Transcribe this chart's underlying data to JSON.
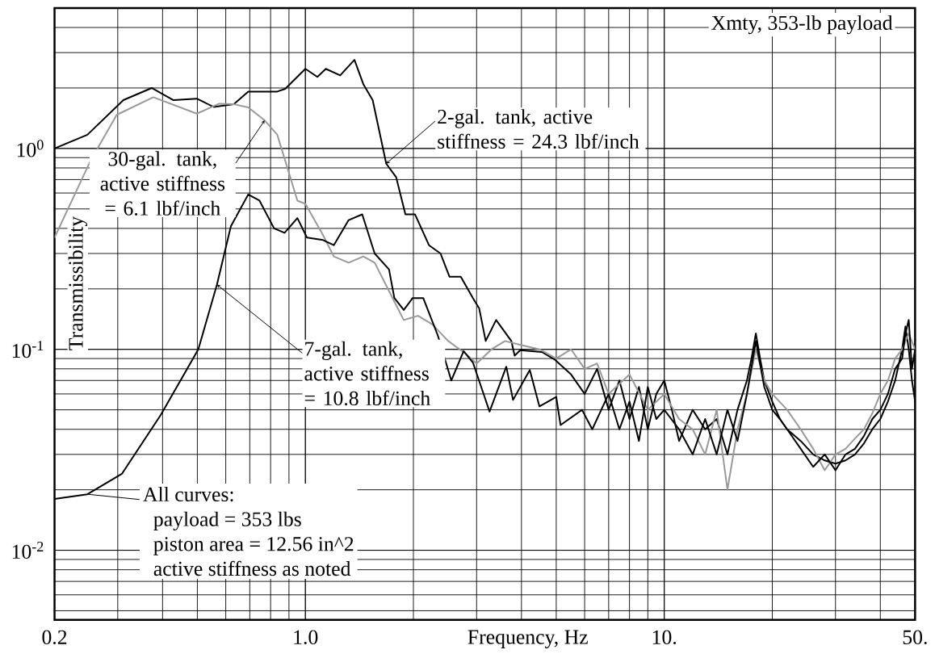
{
  "chart_data": {
    "type": "line",
    "xlabel": "Frequency, Hz",
    "ylabel": "Transmissibility",
    "log": "xy",
    "grid": true,
    "xlim": [
      0.2,
      50
    ],
    "ylim": [
      0.0045,
      5
    ],
    "xticks": [
      {
        "value": 0.2,
        "label": "0.2"
      },
      {
        "value": 1,
        "label": "1.0"
      },
      {
        "value": 10,
        "label": "10."
      },
      {
        "value": 50,
        "label": "50."
      }
    ],
    "yticks": [
      {
        "value": 0.01,
        "label": "10$^{-2}$"
      },
      {
        "value": 0.1,
        "label": "10$^{-1}$"
      },
      {
        "value": 1,
        "label": "10$^{0}$"
      }
    ],
    "annotations": [
      "Xmty, 353-lb payload",
      "All curves:",
      "payload = 353 lbs",
      "piston area = 12.56 in^2",
      "active stiffness as noted"
    ],
    "series": [
      {
        "name": "2-gal. tank, active stiffness = 24.3 lbf/inch",
        "color": "#000000",
        "x": [
          0.2,
          0.247,
          0.311,
          0.373,
          0.429,
          0.498,
          0.555,
          0.632,
          0.693,
          0.835,
          0.879,
          1.0,
          1.08,
          1.14,
          1.25,
          1.37,
          1.45,
          1.54,
          1.68,
          1.79,
          1.9,
          2.02,
          2.21,
          2.38,
          2.52,
          2.71,
          2.93,
          3.05,
          3.18,
          3.4,
          3.75,
          3.83,
          3.97,
          4.56,
          4.95,
          5.5,
          6,
          6.5,
          7,
          7.5,
          8,
          8.5,
          9,
          9.5,
          10,
          10.5,
          11,
          12,
          13,
          14,
          15,
          16,
          17,
          17.5,
          18,
          18.5,
          19,
          20,
          21,
          22,
          24,
          26,
          28,
          30,
          32,
          34,
          36,
          38,
          40,
          42,
          44,
          46,
          47,
          48,
          49,
          50
        ],
        "values": [
          1.0,
          1.17,
          1.74,
          2.0,
          1.74,
          1.77,
          1.61,
          1.66,
          1.92,
          1.92,
          1.98,
          2.49,
          2.27,
          2.49,
          2.31,
          2.76,
          2.09,
          1.74,
          0.84,
          0.72,
          0.47,
          0.47,
          0.33,
          0.3,
          0.23,
          0.23,
          0.18,
          0.16,
          0.11,
          0.14,
          0.11,
          0.093,
          0.099,
          0.097,
          0.089,
          0.075,
          0.06,
          0.08,
          0.05,
          0.07,
          0.045,
          0.065,
          0.04,
          0.06,
          0.07,
          0.05,
          0.035,
          0.05,
          0.04,
          0.045,
          0.03,
          0.05,
          0.07,
          0.09,
          0.12,
          0.09,
          0.07,
          0.055,
          0.045,
          0.04,
          0.035,
          0.03,
          0.028,
          0.027,
          0.028,
          0.03,
          0.034,
          0.04,
          0.045,
          0.055,
          0.07,
          0.1,
          0.13,
          0.1,
          0.07,
          0.055
        ]
      },
      {
        "name": "30-gal. tank, active stiffness = 6.1 lbf/inch",
        "color": "#999999",
        "x": [
          0.2,
          0.252,
          0.298,
          0.377,
          0.498,
          0.575,
          0.632,
          0.693,
          0.77,
          0.835,
          0.897,
          0.95,
          1.0,
          1.12,
          1.2,
          1.32,
          1.45,
          1.56,
          1.75,
          1.88,
          2.06,
          2.26,
          2.5,
          2.8,
          3.0,
          3.3,
          3.6,
          4,
          4.5,
          5,
          5.5,
          6,
          6.5,
          7,
          8,
          9,
          10,
          11,
          12,
          13,
          14,
          15,
          16,
          17,
          18,
          19,
          20,
          22,
          24,
          26,
          28,
          30,
          32,
          34,
          36,
          38,
          40,
          42,
          44,
          46,
          48,
          50
        ],
        "values": [
          0.36,
          0.87,
          1.47,
          1.8,
          1.49,
          1.67,
          1.66,
          1.6,
          1.38,
          1.17,
          0.77,
          0.55,
          0.53,
          0.37,
          0.29,
          0.27,
          0.29,
          0.27,
          0.18,
          0.14,
          0.147,
          0.133,
          0.11,
          0.095,
          0.085,
          0.1,
          0.11,
          0.105,
          0.1,
          0.09,
          0.1,
          0.08,
          0.085,
          0.06,
          0.075,
          0.05,
          0.06,
          0.045,
          0.04,
          0.03,
          0.05,
          0.02,
          0.04,
          0.06,
          0.1,
          0.07,
          0.06,
          0.05,
          0.04,
          0.032,
          0.025,
          0.03,
          0.032,
          0.036,
          0.04,
          0.048,
          0.06,
          0.07,
          0.09,
          0.1,
          0.12,
          0.1
        ]
      },
      {
        "name": "7-gal. tank, active stiffness = 10.8 lbf/inch",
        "color": "#000000",
        "x": [
          0.2,
          0.247,
          0.308,
          0.395,
          0.503,
          0.567,
          0.62,
          0.693,
          0.745,
          0.818,
          0.875,
          0.95,
          1.01,
          1.12,
          1.2,
          1.32,
          1.44,
          1.56,
          1.71,
          1.77,
          1.88,
          1.99,
          2.13,
          2.34,
          2.55,
          2.76,
          2.93,
          3.26,
          3.63,
          3.79,
          4.22,
          4.49,
          5.0,
          5.14,
          5.9,
          6.3,
          7,
          7.5,
          8,
          8.5,
          9,
          9.5,
          10,
          11,
          12,
          13,
          14,
          15,
          16,
          17,
          18,
          19,
          20,
          21,
          22,
          24,
          26,
          28,
          30,
          32,
          34,
          36,
          38,
          40,
          42,
          44,
          46,
          47,
          48,
          49,
          50
        ],
        "values": [
          0.018,
          0.019,
          0.024,
          0.047,
          0.1,
          0.21,
          0.41,
          0.59,
          0.55,
          0.4,
          0.38,
          0.45,
          0.36,
          0.35,
          0.33,
          0.44,
          0.47,
          0.3,
          0.25,
          0.18,
          0.157,
          0.18,
          0.18,
          0.117,
          0.07,
          0.098,
          0.086,
          0.049,
          0.082,
          0.056,
          0.079,
          0.052,
          0.058,
          0.042,
          0.05,
          0.04,
          0.06,
          0.04,
          0.055,
          0.035,
          0.065,
          0.045,
          0.05,
          0.04,
          0.03,
          0.045,
          0.03,
          0.05,
          0.035,
          0.06,
          0.11,
          0.065,
          0.05,
          0.045,
          0.04,
          0.032,
          0.026,
          0.03,
          0.025,
          0.03,
          0.032,
          0.037,
          0.045,
          0.05,
          0.06,
          0.08,
          0.09,
          0.12,
          0.14,
          0.08,
          0.1
        ]
      }
    ]
  }
}
